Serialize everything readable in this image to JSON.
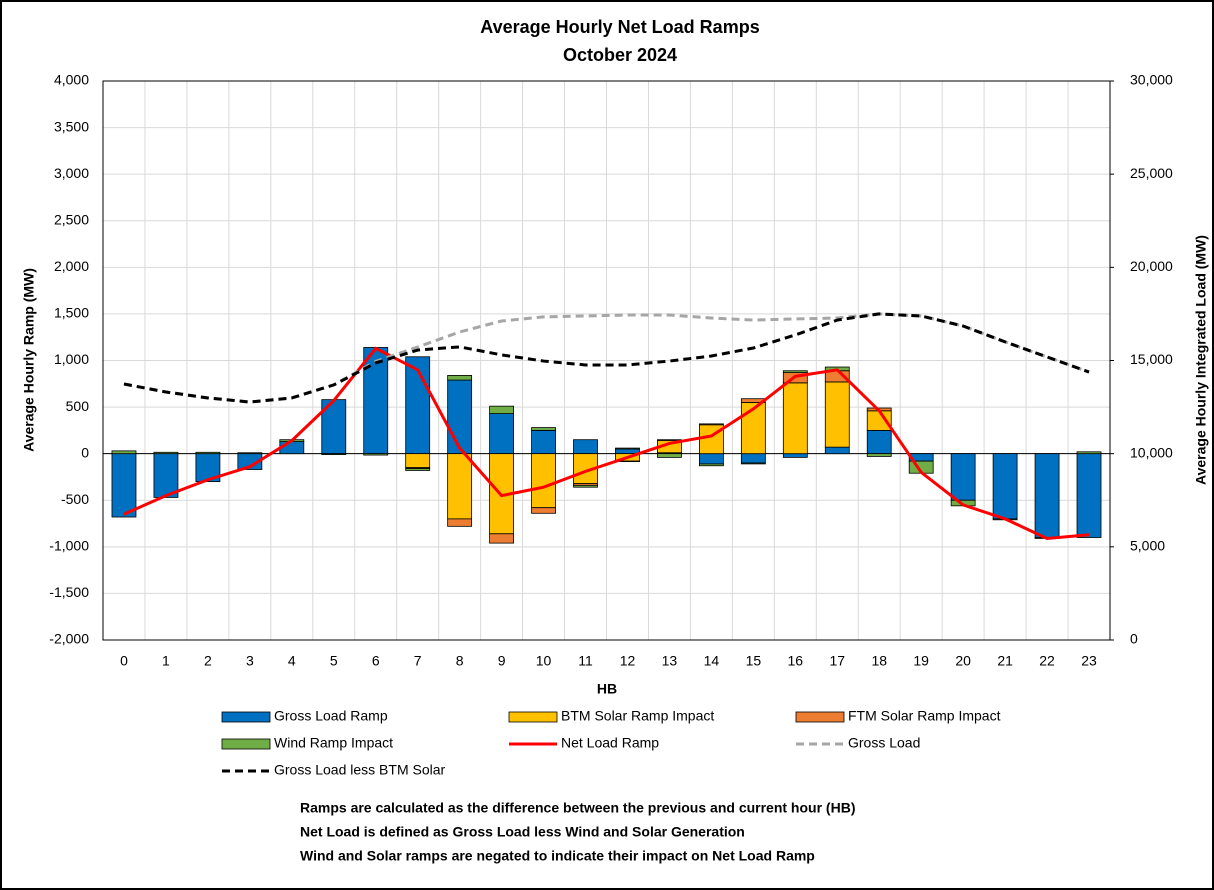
{
  "chart_data": {
    "type": "bar",
    "title": "Average Hourly Net Load Ramps",
    "subtitle": "October 2024",
    "x_label": "HB",
    "y_label": "Average Hourly Ramp (MW)",
    "y2_label": "Average Hourly Integrated Load (MW)",
    "categories": [
      "0",
      "1",
      "2",
      "3",
      "4",
      "5",
      "6",
      "7",
      "8",
      "9",
      "10",
      "11",
      "12",
      "13",
      "14",
      "15",
      "16",
      "17",
      "18",
      "19",
      "20",
      "21",
      "22",
      "23"
    ],
    "ylim": [
      -2000,
      4000
    ],
    "yticks": [
      {
        "value": -2000,
        "label": "-2,000"
      },
      {
        "value": -1500,
        "label": "-1,500"
      },
      {
        "value": -1000,
        "label": "-1,000"
      },
      -500,
      0,
      500,
      {
        "value": 1000,
        "label": "1,000"
      },
      {
        "value": 1500,
        "label": "1,500"
      },
      {
        "value": 2000,
        "label": "2,000"
      },
      {
        "value": 2500,
        "label": "2,500"
      },
      {
        "value": 3000,
        "label": "3,000"
      },
      {
        "value": 3500,
        "label": "3,500"
      },
      {
        "value": 4000,
        "label": "4,000"
      }
    ],
    "y2lim": [
      0,
      30000
    ],
    "y2ticks": [
      0,
      {
        "value": 5000,
        "label": "5,000"
      },
      {
        "value": 10000,
        "label": "10,000"
      },
      {
        "value": 15000,
        "label": "15,000"
      },
      {
        "value": 20000,
        "label": "20,000"
      },
      {
        "value": 25000,
        "label": "25,000"
      },
      {
        "value": 30000,
        "label": "30,000"
      }
    ],
    "grid": true,
    "series": [
      {
        "name": "Gross Load Ramp",
        "type": "bar",
        "color": "#0070c0",
        "values": [
          -680,
          -470,
          -300,
          -170,
          130,
          580,
          1140,
          1040,
          790,
          430,
          250,
          150,
          50,
          10,
          -110,
          -100,
          -40,
          70,
          250,
          -80,
          -500,
          -700,
          -900,
          -900
        ]
      },
      {
        "name": "BTM Solar Ramp Impact",
        "type": "bar",
        "color": "#ffc000",
        "values": [
          0,
          0,
          0,
          0,
          0,
          0,
          0,
          -150,
          -700,
          -860,
          -580,
          -320,
          -80,
          130,
          310,
          550,
          760,
          700,
          210,
          0,
          0,
          0,
          0,
          0
        ]
      },
      {
        "name": "FTM Solar Ramp Impact",
        "type": "bar",
        "color": "#ed7d31",
        "values": [
          0,
          0,
          0,
          0,
          0,
          0,
          0,
          -10,
          -80,
          -100,
          -60,
          -20,
          -5,
          10,
          10,
          40,
          110,
          120,
          30,
          0,
          0,
          0,
          0,
          0
        ]
      },
      {
        "name": "Wind Ramp Impact",
        "type": "bar",
        "color": "#70ad47",
        "values": [
          30,
          15,
          15,
          10,
          20,
          -10,
          -15,
          -20,
          50,
          80,
          30,
          -20,
          10,
          -40,
          -20,
          -10,
          20,
          40,
          -30,
          -130,
          -60,
          -10,
          -10,
          20
        ]
      },
      {
        "name": "Net Load Ramp",
        "type": "line",
        "color": "#ff0000",
        "dash": "none",
        "values": [
          -650,
          -450,
          -280,
          -140,
          140,
          570,
          1130,
          900,
          60,
          -450,
          -360,
          -190,
          -40,
          110,
          190,
          480,
          830,
          900,
          460,
          -200,
          -550,
          -700,
          -910,
          -870
        ]
      },
      {
        "name": "Gross Load",
        "type": "line",
        "axis": "y2",
        "color": "#a6a6a6",
        "dash": "8,5",
        "values": [
          13740,
          13310,
          12990,
          12770,
          12990,
          13690,
          14950,
          15725,
          16530,
          17120,
          17340,
          17390,
          17440,
          17440,
          17280,
          17170,
          17230,
          17280,
          17500,
          17390,
          16850,
          16000,
          15190,
          14380
        ]
      },
      {
        "name": "Gross Load less BTM Solar",
        "type": "line",
        "axis": "y2",
        "color": "#000000",
        "dash": "8,5",
        "values": [
          13740,
          13310,
          12990,
          12770,
          12990,
          13690,
          14870,
          15560,
          15730,
          15300,
          14970,
          14760,
          14760,
          14970,
          15240,
          15670,
          16370,
          17170,
          17500,
          17390,
          16850,
          16000,
          15190,
          14380
        ]
      }
    ],
    "notes": [
      "Ramps are calculated as the difference between the previous and current hour (HB)",
      "Net Load is defined as Gross Load less Wind and Solar Generation",
      "Wind and Solar ramps are negated to indicate their impact on Net Load Ramp"
    ]
  }
}
